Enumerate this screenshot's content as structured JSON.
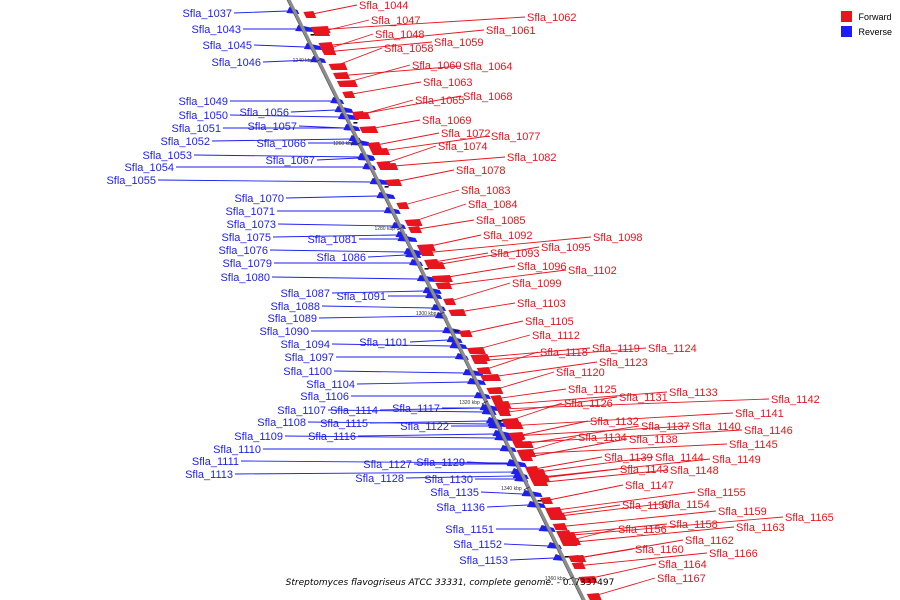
{
  "legend": {
    "forward": "Forward",
    "reverse": "Reverse"
  },
  "colors": {
    "forward": "#e8141e",
    "reverse": "#1e1ef0",
    "backbone": "#8c8c8c"
  },
  "caption": {
    "organism": "Streptomyces flavogriseus ATCC 33331, complete genome.",
    "suffix": " - 0..7337497"
  },
  "ticks": [
    "1240 kbp",
    "1260 kbp",
    "1280 kbp",
    "1300 kbp",
    "1320 kbp",
    "1340 kbp",
    "1360 kbp"
  ],
  "reverse_genes": [
    "Sfla_1037",
    "Sfla_1043",
    "Sfla_1045",
    "Sfla_1046",
    "Sfla_1049",
    "Sfla_1050",
    "Sfla_1056",
    "Sfla_1051",
    "Sfla_1057",
    "Sfla_1052",
    "Sfla_1066",
    "Sfla_1053",
    "Sfla_1067",
    "Sfla_1054",
    "Sfla_1055",
    "Sfla_1070",
    "Sfla_1071",
    "Sfla_1073",
    "Sfla_1075",
    "Sfla_1081",
    "Sfla_1076",
    "Sfla_1086",
    "Sfla_1079",
    "Sfla_1080",
    "Sfla_1087",
    "Sfla_1091",
    "Sfla_1088",
    "Sfla_1089",
    "Sfla_1090",
    "Sfla_1094",
    "Sfla_1101",
    "Sfla_1097",
    "Sfla_1100",
    "Sfla_1104",
    "Sfla_1106",
    "Sfla_1107",
    "Sfla_1114",
    "Sfla_1117",
    "Sfla_1108",
    "Sfla_1115",
    "Sfla_1122",
    "Sfla_1109",
    "Sfla_1116",
    "Sfla_1110",
    "Sfla_1111",
    "Sfla_1113",
    "Sfla_1127",
    "Sfla_1129",
    "Sfla_1128",
    "Sfla_1130",
    "Sfla_1135",
    "Sfla_1136",
    "Sfla_1151",
    "Sfla_1152",
    "Sfla_1153"
  ],
  "forward_genes": [
    "Sfla_1044",
    "Sfla_1047",
    "Sfla_1048",
    "Sfla_1058",
    "Sfla_1059",
    "Sfla_1062",
    "Sfla_1061",
    "Sfla_1060",
    "Sfla_1064",
    "Sfla_1063",
    "Sfla_1065",
    "Sfla_1068",
    "Sfla_1069",
    "Sfla_1072",
    "Sfla_1077",
    "Sfla_1074",
    "Sfla_1082",
    "Sfla_1078",
    "Sfla_1083",
    "Sfla_1084",
    "Sfla_1085",
    "Sfla_1092",
    "Sfla_1098",
    "Sfla_1095",
    "Sfla_1093",
    "Sfla_1096",
    "Sfla_1102",
    "Sfla_1099",
    "Sfla_1103",
    "Sfla_1105",
    "Sfla_1112",
    "Sfla_1118",
    "Sfla_1119",
    "Sfla_1124",
    "Sfla_1123",
    "Sfla_1120",
    "Sfla_1125",
    "Sfla_1133",
    "Sfla_1131",
    "Sfla_1126",
    "Sfla_1142",
    "Sfla_1141",
    "Sfla_1132",
    "Sfla_1137",
    "Sfla_1140",
    "Sfla_1146",
    "Sfla_1134",
    "Sfla_1138",
    "Sfla_1145",
    "Sfla_1139",
    "Sfla_1144",
    "Sfla_1149",
    "Sfla_1143",
    "Sfla_1148",
    "Sfla_1147",
    "Sfla_1155",
    "Sfla_1150",
    "Sfla_1154",
    "Sfla_1159",
    "Sfla_1165",
    "Sfla_1158",
    "Sfla_1156",
    "Sfla_1163",
    "Sfla_1162",
    "Sfla_1160",
    "Sfla_1166",
    "Sfla_1164",
    "Sfla_1167"
  ]
}
